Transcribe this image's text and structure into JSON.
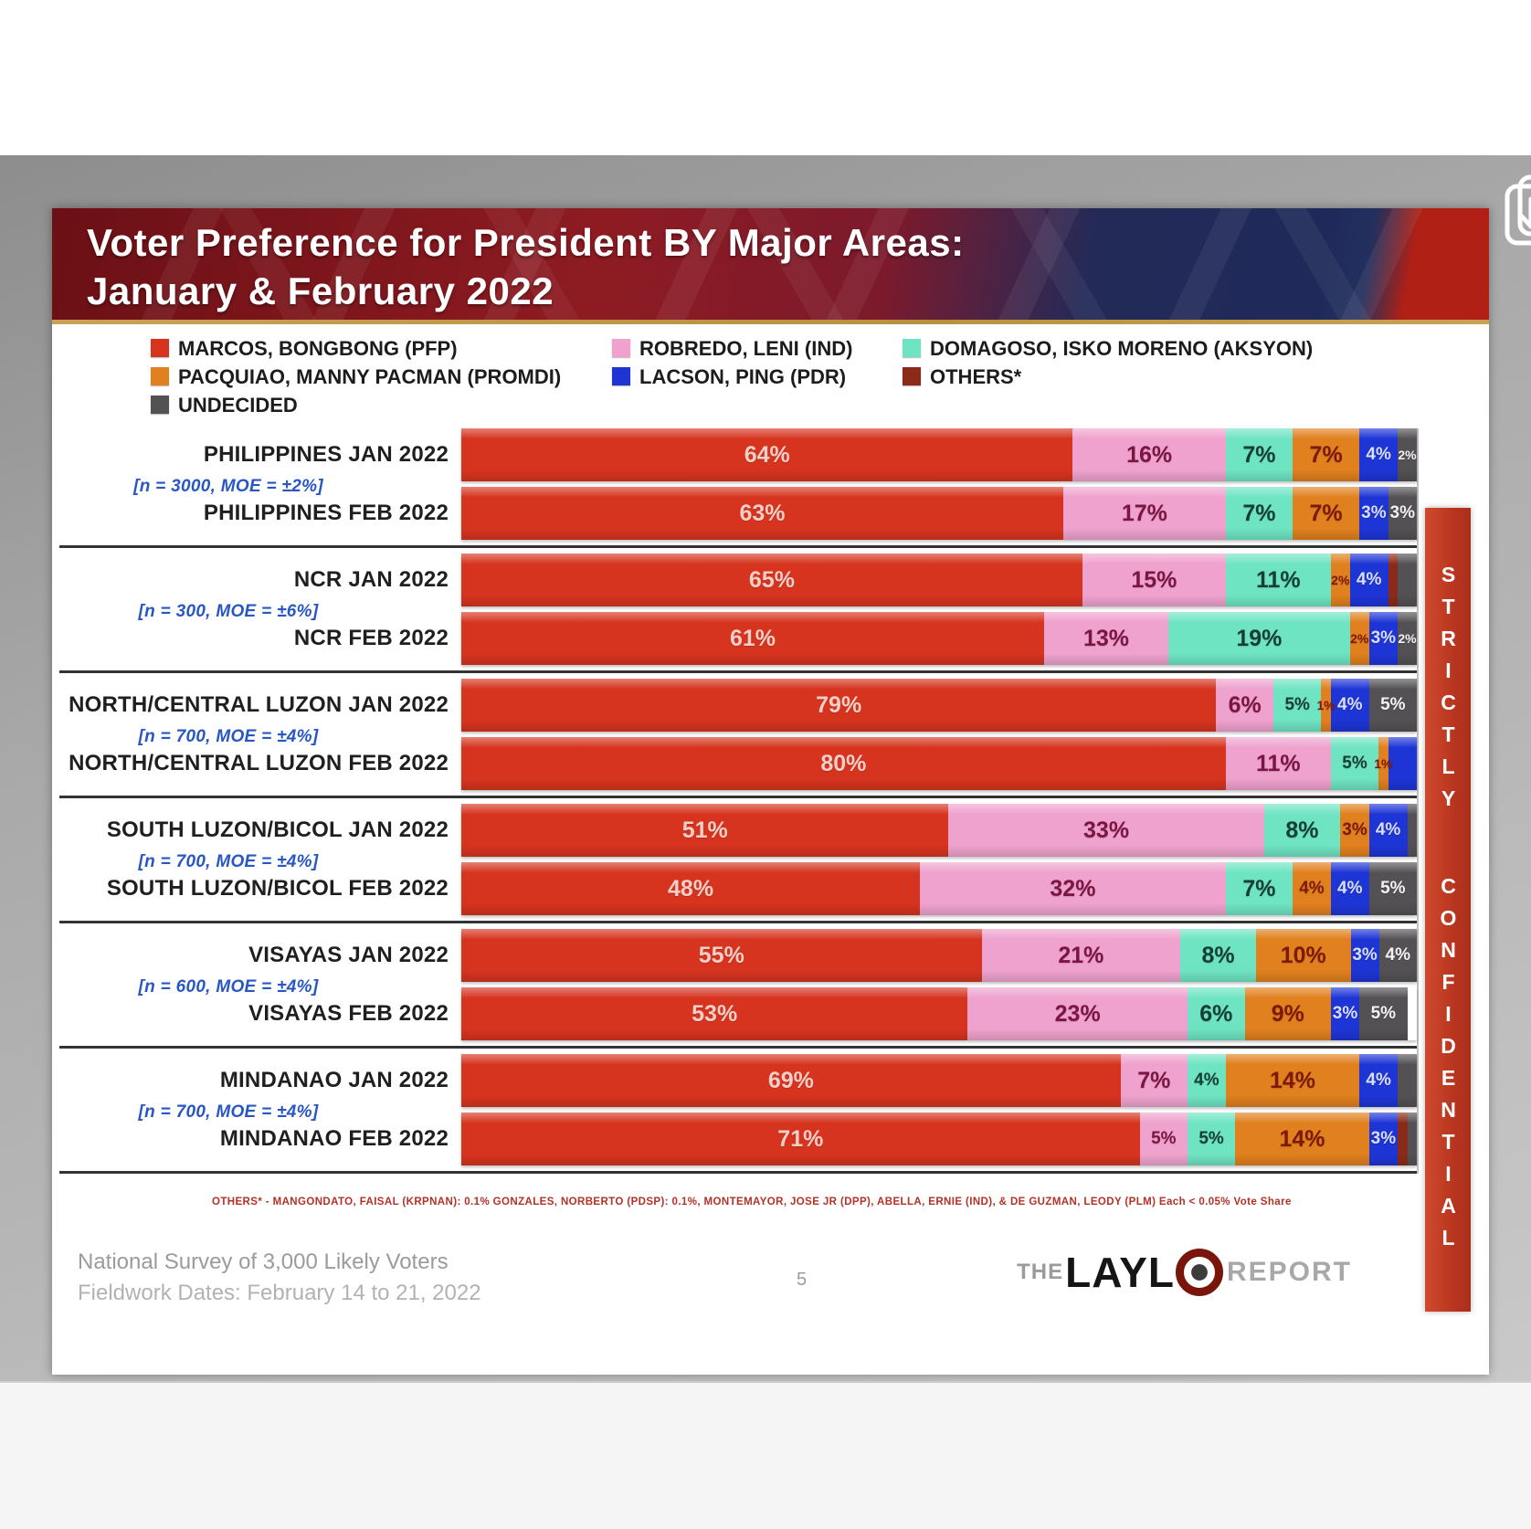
{
  "page": {
    "title_line1": "Voter Preference for President BY Major Areas:",
    "title_line2": "January & February 2022",
    "confidential": "STRICTLY CONFIDENTIAL",
    "footnote": "OTHERS* - MANGONDATO, FAISAL (KRPNAN): 0.1% GONZALES, NORBERTO (PDSP): 0.1%, MONTEMAYOR, JOSE JR (DPP), ABELLA, ERNIE (IND), & DE GUZMAN, LEODY (PLM) Each < 0.05% Vote Share",
    "footer": {
      "line1": "National Survey of 3,000 Likely Voters",
      "line2": "Fieldwork Dates: February 14 to 21, 2022",
      "page_number": "5"
    },
    "logo": {
      "the": "THE",
      "layl": "LAYL",
      "report": "REPORT"
    },
    "icons": {
      "top_right": "download-icon",
      "logo_o": "bullseye-o-icon"
    }
  },
  "chart_data": {
    "type": "bar",
    "orientation": "horizontal-stacked",
    "unit": "%",
    "xlim": [
      0,
      100
    ],
    "grid": false,
    "legend_position": "top",
    "series": [
      {
        "short": "marcos",
        "name": "MARCOS, BONGBONG (PFP)",
        "color": "#d6341f",
        "label_color": "#f3cfc8"
      },
      {
        "short": "robredo",
        "name": "ROBREDO, LENI (IND)",
        "color": "#efa2cd",
        "label_color": "#7b1543"
      },
      {
        "short": "domagoso",
        "name": "DOMAGOSO, ISKO MORENO (AKSYON)",
        "color": "#6fe4c3",
        "label_color": "#153f36"
      },
      {
        "short": "pacquiao",
        "name": "PACQUIAO, MANNY PACMAN (PROMDI)",
        "color": "#e0801e",
        "label_color": "#7e1808"
      },
      {
        "short": "lacson",
        "name": "LACSON, PING (PDR)",
        "color": "#1e35d6",
        "label_color": "#d9def9"
      },
      {
        "short": "others",
        "name": "OTHERS*",
        "color": "#8c2a1a",
        "label_color": "#f0d9d4"
      },
      {
        "short": "undecided",
        "name": "UNDECIDED",
        "color": "#545155",
        "label_color": "#f2f2f2"
      }
    ],
    "rows": [
      {
        "label": "PHILIPPINES JAN 2022",
        "note": "[n = 3000, MOE = ±2%]",
        "values": [
          64,
          16,
          7,
          7,
          4,
          0,
          2
        ],
        "labels": [
          "64%",
          "16%",
          "7%",
          "7%",
          "4%",
          "",
          "2%"
        ]
      },
      {
        "label": "PHILIPPINES FEB 2022",
        "note": "",
        "values": [
          63,
          17,
          7,
          7,
          3,
          0,
          3
        ],
        "labels": [
          "63%",
          "17%",
          "7%",
          "7%",
          "3%",
          "",
          "3%"
        ]
      },
      {
        "label": "NCR JAN 2022",
        "note": "[n = 300, MOE = ±6%]",
        "values": [
          65,
          15,
          11,
          2,
          4,
          1,
          2
        ],
        "labels": [
          "65%",
          "15%",
          "11%",
          "2%",
          "4%",
          "",
          ""
        ]
      },
      {
        "label": "NCR FEB 2022",
        "note": "",
        "values": [
          61,
          13,
          19,
          2,
          3,
          0,
          2
        ],
        "labels": [
          "61%",
          "13%",
          "19%",
          "2%",
          "3%",
          "",
          "2%"
        ]
      },
      {
        "label": "NORTH/CENTRAL LUZON JAN 2022",
        "note": "[n = 700, MOE = ±4%]",
        "values": [
          79,
          6,
          5,
          1,
          4,
          0,
          5
        ],
        "labels": [
          "79%",
          "6%",
          "5%",
          "1%",
          "4%",
          "",
          "5%"
        ]
      },
      {
        "label": "NORTH/CENTRAL LUZON FEB 2022",
        "note": "",
        "values": [
          80,
          11,
          5,
          1,
          3,
          0,
          0
        ],
        "labels": [
          "80%",
          "11%",
          "5%",
          "1%",
          "",
          "",
          ""
        ]
      },
      {
        "label": "SOUTH LUZON/BICOL JAN 2022",
        "note": "[n = 700, MOE = ±4%]",
        "values": [
          51,
          33,
          8,
          3,
          4,
          0,
          1
        ],
        "labels": [
          "51%",
          "33%",
          "8%",
          "3%",
          "4%",
          "",
          ""
        ]
      },
      {
        "label": "SOUTH LUZON/BICOL FEB 2022",
        "note": "",
        "values": [
          48,
          32,
          7,
          4,
          4,
          0,
          5
        ],
        "labels": [
          "48%",
          "32%",
          "7%",
          "4%",
          "4%",
          "",
          "5%"
        ]
      },
      {
        "label": "VISAYAS JAN 2022",
        "note": "[n = 600, MOE = ±4%]",
        "values": [
          55,
          21,
          8,
          10,
          3,
          0,
          4
        ],
        "labels": [
          "55%",
          "21%",
          "8%",
          "10%",
          "3%",
          "",
          "4%"
        ]
      },
      {
        "label": "VISAYAS FEB 2022",
        "note": "",
        "values": [
          53,
          23,
          6,
          9,
          3,
          0,
          5
        ],
        "labels": [
          "53%",
          "23%",
          "6%",
          "9%",
          "3%",
          "",
          "5%"
        ]
      },
      {
        "label": "MINDANAO JAN 2022",
        "note": "[n = 700, MOE = ±4%]",
        "values": [
          69,
          7,
          4,
          14,
          4,
          0,
          2
        ],
        "labels": [
          "69%",
          "7%",
          "4%",
          "14%",
          "4%",
          "",
          ""
        ]
      },
      {
        "label": "MINDANAO FEB 2022",
        "note": "",
        "values": [
          71,
          5,
          5,
          14,
          3,
          1,
          1
        ],
        "labels": [
          "71%",
          "5%",
          "5%",
          "14%",
          "3%",
          "",
          ""
        ]
      }
    ]
  }
}
